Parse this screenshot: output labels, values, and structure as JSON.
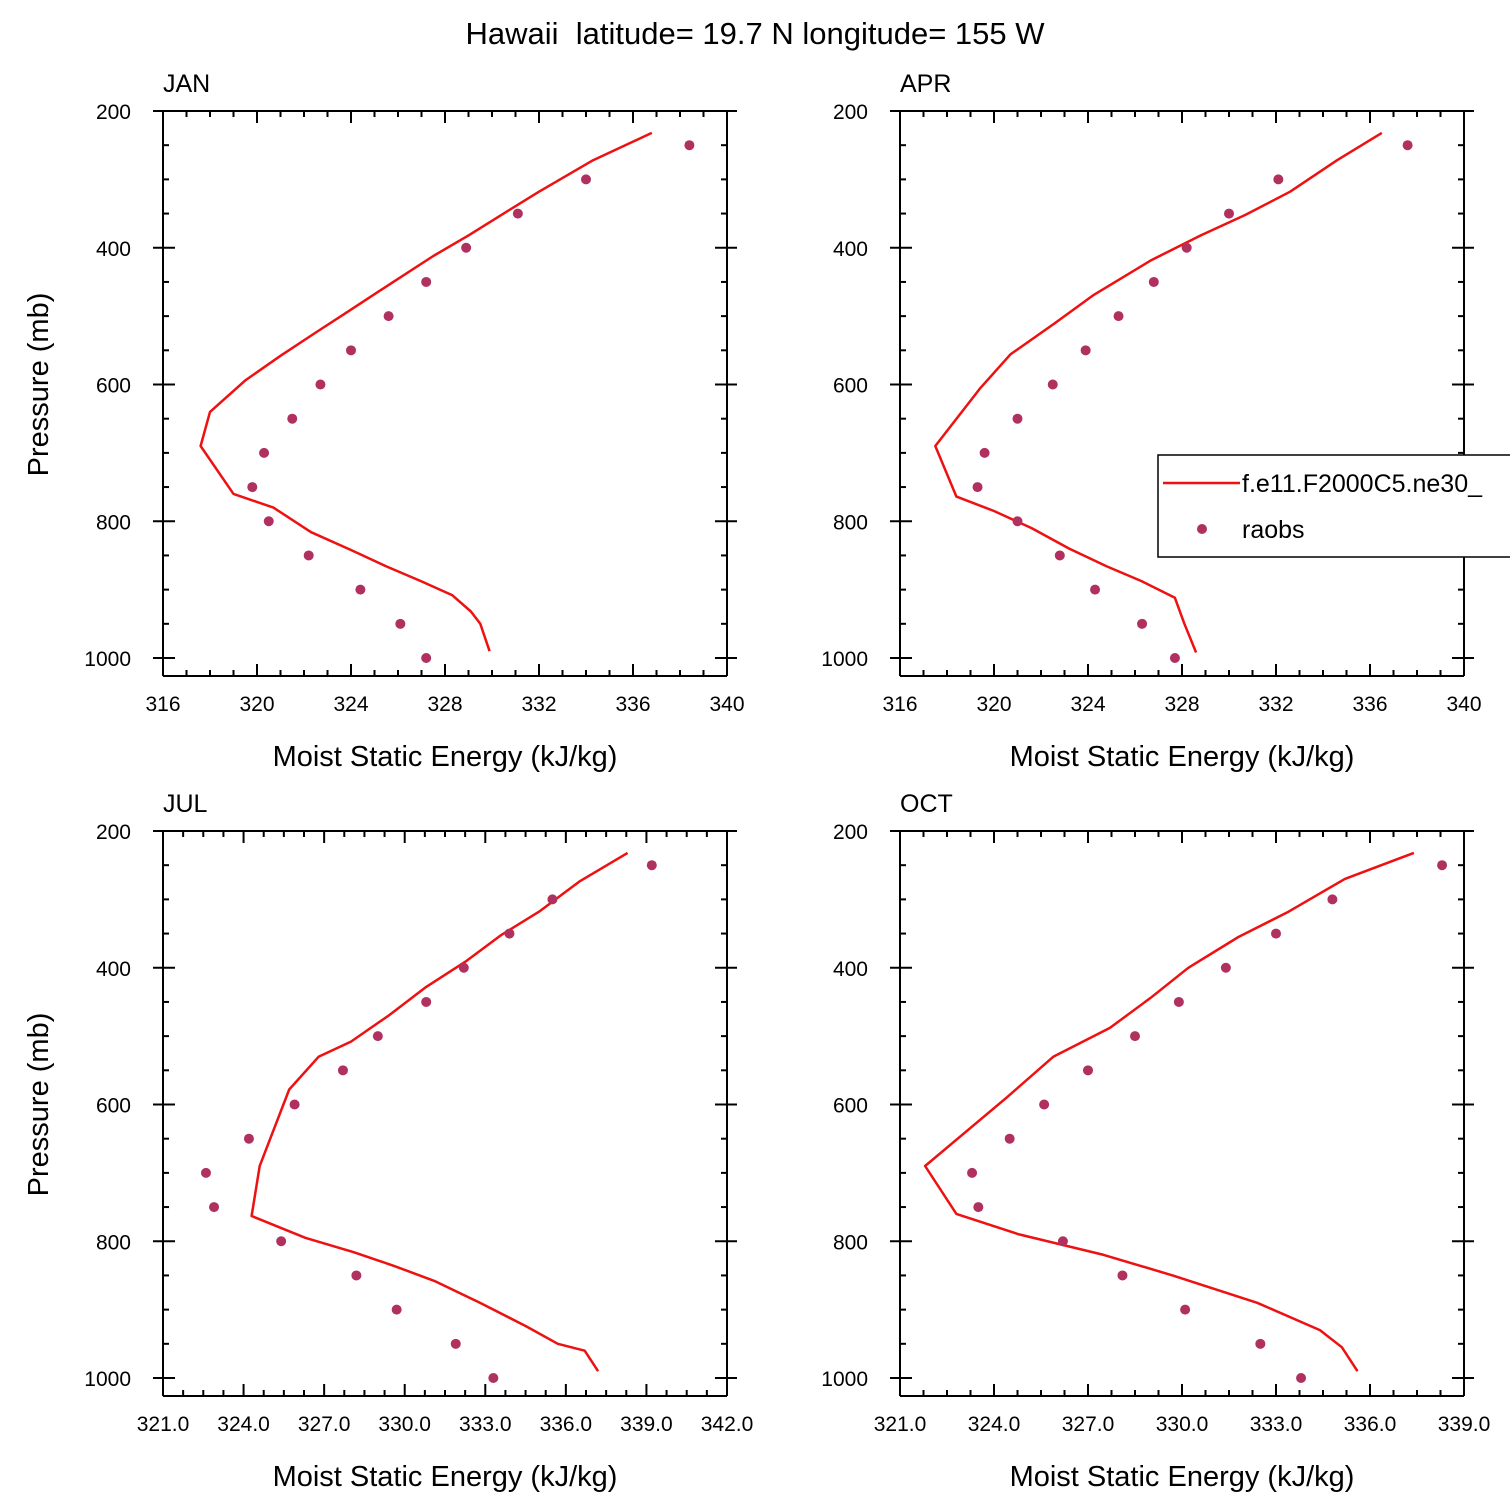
{
  "figure_title": "Hawaii  latitude= 19.7 N longitude= 155 W",
  "legend": {
    "model_label": "f.e11.F2000C5.ne30_",
    "obs_label": "raobs"
  },
  "colors": {
    "model_line": "#ee1111",
    "obs_marker": "#b03060",
    "axes": "#000000"
  },
  "chart_data": [
    {
      "type": "line",
      "title": "JAN",
      "xlabel": "Moist Static Energy (kJ/kg)",
      "ylabel": "Pressure (mb)",
      "xlim": [
        316,
        340
      ],
      "ylim": [
        200,
        1000
      ],
      "xticks": [
        316,
        320,
        324,
        328,
        332,
        336,
        340
      ],
      "xtick_labels": [
        "316",
        "320",
        "324",
        "328",
        "332",
        "336",
        "340"
      ],
      "yticks": [
        200,
        400,
        600,
        800,
        1000
      ],
      "ytick_labels": [
        "200",
        "400",
        "600",
        "800",
        "1000"
      ],
      "series": [
        {
          "name": "f.e11.F2000C5.ne30_",
          "kind": "line",
          "x": [
            336.8,
            334.3,
            332.0,
            330.4,
            329.0,
            327.5,
            325.8,
            323.8,
            322.5,
            321.0,
            319.5,
            318.0,
            317.6,
            319.0,
            320.7,
            322.3,
            324.0,
            325.5,
            327.0,
            328.3,
            329.1,
            329.5,
            329.9
          ],
          "y": [
            232,
            272,
            318,
            352,
            382,
            412,
            450,
            495,
            524,
            558,
            594,
            640,
            690,
            760,
            780,
            816,
            842,
            866,
            888,
            908,
            932,
            950,
            990
          ]
        },
        {
          "name": "raobs",
          "kind": "scatter",
          "x": [
            338.4,
            334.0,
            331.1,
            328.9,
            327.2,
            325.6,
            324.0,
            322.7,
            321.5,
            320.3,
            319.8,
            320.5,
            322.2,
            324.4,
            326.1,
            327.2
          ],
          "y": [
            250,
            300,
            350,
            400,
            450,
            500,
            550,
            600,
            650,
            700,
            750,
            800,
            850,
            900,
            950,
            1000
          ]
        }
      ]
    },
    {
      "type": "line",
      "title": "APR",
      "xlabel": "Moist Static Energy (kJ/kg)",
      "ylabel": "",
      "xlim": [
        316,
        340
      ],
      "ylim": [
        200,
        1000
      ],
      "xticks": [
        316,
        320,
        324,
        328,
        332,
        336,
        340
      ],
      "xtick_labels": [
        "316",
        "320",
        "324",
        "328",
        "332",
        "336",
        "340"
      ],
      "yticks": [
        200,
        400,
        600,
        800,
        1000
      ],
      "ytick_labels": [
        "200",
        "400",
        "600",
        "800",
        "1000"
      ],
      "series": [
        {
          "name": "f.e11.F2000C5.ne30_",
          "kind": "line",
          "x": [
            336.5,
            334.6,
            332.6,
            330.7,
            328.8,
            326.7,
            324.2,
            322.6,
            320.7,
            319.4,
            317.5,
            318.4,
            320.0,
            321.6,
            323.2,
            324.8,
            326.3,
            327.7,
            328.1,
            328.6
          ],
          "y": [
            232,
            272,
            318,
            352,
            382,
            418,
            470,
            510,
            556,
            606,
            690,
            764,
            785,
            810,
            840,
            866,
            888,
            912,
            950,
            992
          ]
        },
        {
          "name": "raobs",
          "kind": "scatter",
          "x": [
            337.6,
            332.1,
            330.0,
            328.2,
            326.8,
            325.3,
            323.9,
            322.5,
            321.0,
            319.6,
            319.3,
            321.0,
            322.8,
            324.3,
            326.3,
            327.7
          ],
          "y": [
            250,
            300,
            350,
            400,
            450,
            500,
            550,
            600,
            650,
            700,
            750,
            800,
            850,
            900,
            950,
            1000
          ]
        }
      ]
    },
    {
      "type": "line",
      "title": "JUL",
      "xlabel": "Moist Static Energy (kJ/kg)",
      "ylabel": "Pressure (mb)",
      "xlim": [
        321,
        342
      ],
      "ylim": [
        200,
        1000
      ],
      "xticks": [
        321,
        324,
        327,
        330,
        333,
        336,
        339,
        342
      ],
      "xtick_labels": [
        "321.0",
        "324.0",
        "327.0",
        "330.0",
        "333.0",
        "336.0",
        "339.0",
        "342.0"
      ],
      "yticks": [
        200,
        400,
        600,
        800,
        1000
      ],
      "ytick_labels": [
        "200",
        "400",
        "600",
        "800",
        "1000"
      ],
      "series": [
        {
          "name": "f.e11.F2000C5.ne30_",
          "kind": "line",
          "x": [
            338.3,
            336.5,
            335.0,
            333.6,
            332.3,
            330.8,
            329.4,
            328.0,
            326.8,
            325.7,
            324.6,
            324.3,
            326.3,
            328.1,
            329.6,
            331.1,
            332.8,
            334.5,
            335.7,
            336.7,
            337.2
          ],
          "y": [
            232,
            274,
            318,
            352,
            390,
            428,
            470,
            508,
            530,
            578,
            690,
            763,
            795,
            816,
            836,
            858,
            890,
            924,
            950,
            960,
            990
          ]
        },
        {
          "name": "raobs",
          "kind": "scatter",
          "x": [
            339.2,
            335.5,
            333.9,
            332.2,
            330.8,
            329.0,
            327.7,
            325.9,
            324.2,
            322.6,
            322.9,
            325.4,
            328.2,
            329.7,
            331.9,
            333.3
          ],
          "y": [
            250,
            300,
            350,
            400,
            450,
            500,
            550,
            600,
            650,
            700,
            750,
            800,
            850,
            900,
            950,
            1000
          ]
        }
      ]
    },
    {
      "type": "line",
      "title": "OCT",
      "xlabel": "Moist Static Energy (kJ/kg)",
      "ylabel": "",
      "xlim": [
        321,
        339
      ],
      "ylim": [
        200,
        1000
      ],
      "xticks": [
        321,
        324,
        327,
        330,
        333,
        336,
        339
      ],
      "xtick_labels": [
        "321.0",
        "324.0",
        "327.0",
        "330.0",
        "333.0",
        "336.0",
        "339.0"
      ],
      "yticks": [
        200,
        400,
        600,
        800,
        1000
      ],
      "ytick_labels": [
        "200",
        "400",
        "600",
        "800",
        "1000"
      ],
      "series": [
        {
          "name": "f.e11.F2000C5.ne30_",
          "kind": "line",
          "x": [
            337.4,
            335.2,
            333.4,
            331.8,
            330.2,
            329.0,
            327.7,
            325.9,
            324.4,
            321.8,
            322.8,
            324.8,
            327.5,
            329.7,
            332.4,
            334.4,
            335.1,
            335.6
          ],
          "y": [
            232,
            270,
            318,
            355,
            400,
            444,
            488,
            530,
            590,
            690,
            760,
            790,
            820,
            850,
            890,
            930,
            955,
            990
          ]
        },
        {
          "name": "raobs",
          "kind": "scatter",
          "x": [
            338.3,
            334.8,
            333.0,
            331.4,
            329.9,
            328.5,
            327.0,
            325.6,
            324.5,
            323.3,
            323.5,
            326.2,
            328.1,
            330.1,
            332.5,
            333.8
          ],
          "y": [
            250,
            300,
            350,
            400,
            450,
            500,
            550,
            600,
            650,
            700,
            750,
            800,
            850,
            900,
            950,
            1000
          ]
        }
      ]
    }
  ]
}
